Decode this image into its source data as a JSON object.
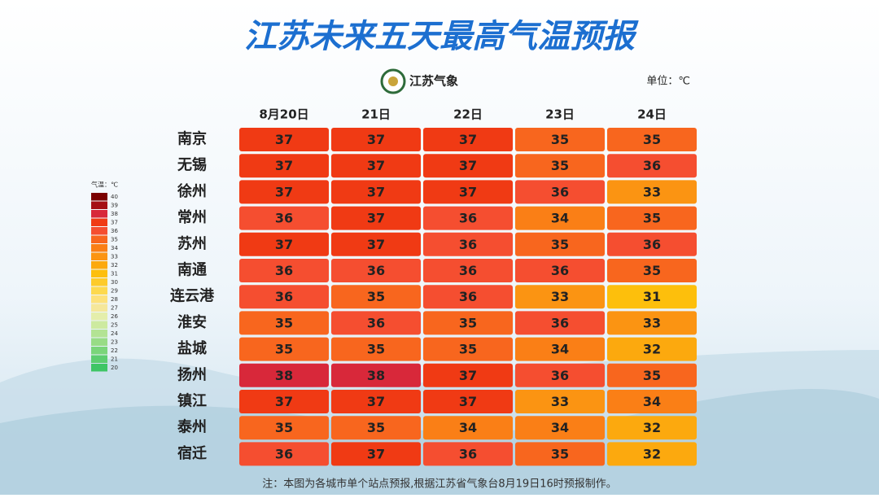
{
  "header": {
    "title": "江苏未来五天最高气温预报",
    "logo": "江苏气象",
    "unit": "单位：℃"
  },
  "table": {
    "columns": [
      "8月20日",
      "21日",
      "22日",
      "23日",
      "24日"
    ],
    "rows": [
      {
        "city": "南京",
        "values": [
          37,
          37,
          37,
          35,
          35
        ]
      },
      {
        "city": "无锡",
        "values": [
          37,
          37,
          37,
          35,
          36
        ]
      },
      {
        "city": "徐州",
        "values": [
          37,
          37,
          37,
          36,
          33
        ]
      },
      {
        "city": "常州",
        "values": [
          36,
          37,
          36,
          34,
          35
        ]
      },
      {
        "city": "苏州",
        "values": [
          37,
          37,
          36,
          35,
          36
        ]
      },
      {
        "city": "南通",
        "values": [
          36,
          36,
          36,
          36,
          35
        ]
      },
      {
        "city": "连云港",
        "values": [
          36,
          35,
          36,
          33,
          31
        ]
      },
      {
        "city": "淮安",
        "values": [
          35,
          36,
          35,
          36,
          33
        ]
      },
      {
        "city": "盐城",
        "values": [
          35,
          35,
          35,
          34,
          32
        ]
      },
      {
        "city": "扬州",
        "values": [
          38,
          38,
          37,
          36,
          35
        ]
      },
      {
        "city": "镇江",
        "values": [
          37,
          37,
          37,
          33,
          34
        ]
      },
      {
        "city": "泰州",
        "values": [
          35,
          35,
          34,
          34,
          32
        ]
      },
      {
        "city": "宿迁",
        "values": [
          36,
          37,
          36,
          35,
          32
        ]
      }
    ]
  },
  "legend": {
    "title": "气温：℃",
    "entries": [
      {
        "value": 40,
        "color": "#7b0000"
      },
      {
        "value": 39,
        "color": "#a50f15"
      },
      {
        "value": 38,
        "color": "#d8283a"
      },
      {
        "value": 37,
        "color": "#f03a14"
      },
      {
        "value": 36,
        "color": "#f54e30"
      },
      {
        "value": 35,
        "color": "#f8661e"
      },
      {
        "value": 34,
        "color": "#fa7f16"
      },
      {
        "value": 33,
        "color": "#fb9412"
      },
      {
        "value": 32,
        "color": "#fca90e"
      },
      {
        "value": 31,
        "color": "#fdbf0c"
      },
      {
        "value": 30,
        "color": "#fdcb2a"
      },
      {
        "value": 29,
        "color": "#fdd94e"
      },
      {
        "value": 28,
        "color": "#fde17a"
      },
      {
        "value": 27,
        "color": "#f5e79a"
      },
      {
        "value": 26,
        "color": "#e4eeab"
      },
      {
        "value": 25,
        "color": "#cdeaa0"
      },
      {
        "value": 24,
        "color": "#b3e394"
      },
      {
        "value": 23,
        "color": "#98dc86"
      },
      {
        "value": 22,
        "color": "#7ad57a"
      },
      {
        "value": 21,
        "color": "#5ccd6f"
      },
      {
        "value": 20,
        "color": "#3ec565"
      }
    ]
  },
  "footnote": "注：本图为各城市单个站点预报,根据江苏省气象台8月19日16时预报制作。"
}
